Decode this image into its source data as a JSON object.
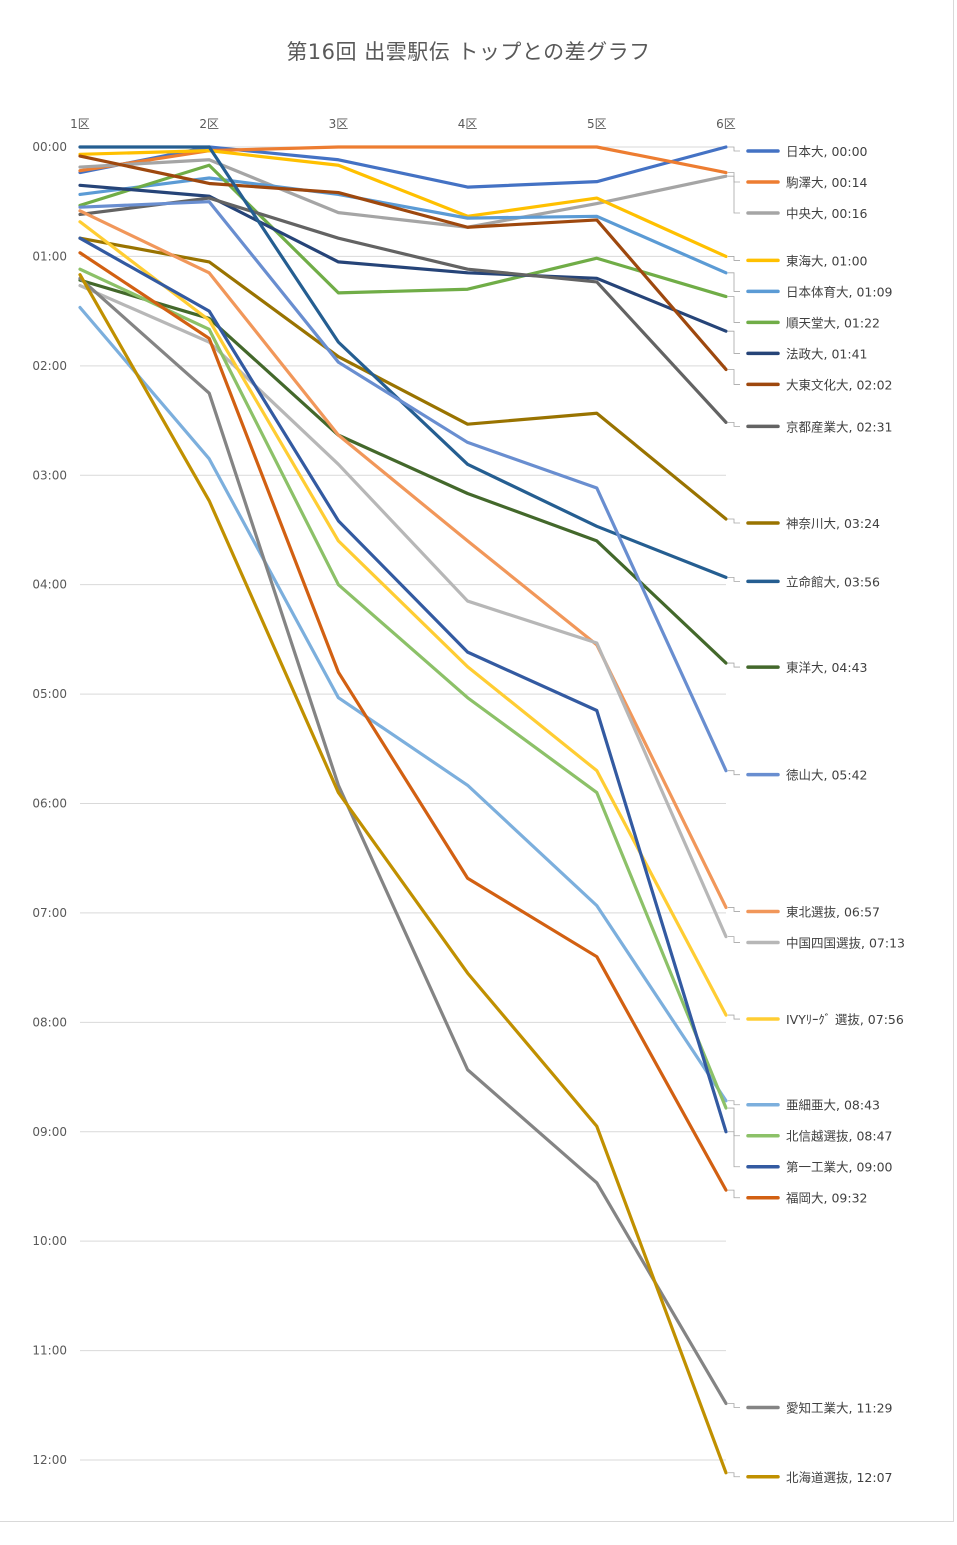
{
  "chart_data": {
    "type": "line",
    "title": "第16回 出雲駅伝 トップとの差グラフ",
    "xlabel": "",
    "ylabel": "",
    "categories": [
      "1区",
      "2区",
      "3区",
      "4区",
      "5区",
      "6区"
    ],
    "y_unit": "seconds behind leader (mm:ss)",
    "y_inverted": true,
    "ylim": [
      0,
      720
    ],
    "y_ticks": [
      "00:00",
      "01:00",
      "02:00",
      "03:00",
      "04:00",
      "05:00",
      "06:00",
      "07:00",
      "08:00",
      "09:00",
      "10:00",
      "11:00",
      "12:00"
    ],
    "grid": true,
    "legend": "right, labels at line ends",
    "series": [
      {
        "name": "日本大",
        "label": "日本大, 00:00",
        "color": "#4472C4",
        "values": [
          14,
          0,
          7,
          22,
          19,
          0
        ]
      },
      {
        "name": "駒澤大",
        "label": "駒澤大, 00:14",
        "color": "#ED7D31",
        "values": [
          13,
          2,
          0,
          0,
          0,
          14
        ]
      },
      {
        "name": "中央大",
        "label": "中央大, 00:16",
        "color": "#A5A5A5",
        "values": [
          11,
          7,
          36,
          44,
          31,
          16
        ]
      },
      {
        "name": "東海大",
        "label": "東海大, 01:00",
        "color": "#FFC000",
        "values": [
          4,
          2,
          10,
          38,
          28,
          60
        ]
      },
      {
        "name": "日本体育大",
        "label": "日本体育大, 01:09",
        "color": "#5B9BD5",
        "values": [
          26,
          17,
          26,
          39,
          38,
          69
        ]
      },
      {
        "name": "順天堂大",
        "label": "順天堂大, 01:22",
        "color": "#70AD47",
        "values": [
          32,
          10,
          80,
          78,
          61,
          82
        ]
      },
      {
        "name": "法政大",
        "label": "法政大, 01:41",
        "color": "#264478",
        "values": [
          21,
          27,
          63,
          69,
          72,
          101
        ]
      },
      {
        "name": "大東文化大",
        "label": "大東文化大, 02:02",
        "color": "#9E480E",
        "values": [
          5,
          20,
          25,
          44,
          40,
          122
        ]
      },
      {
        "name": "京都産業大",
        "label": "京都産業大, 02:31",
        "color": "#636363",
        "values": [
          37,
          28,
          50,
          67,
          74,
          151
        ]
      },
      {
        "name": "神奈川大",
        "label": "神奈川大, 03:24",
        "color": "#997300",
        "values": [
          50,
          63,
          115,
          152,
          146,
          204
        ]
      },
      {
        "name": "立命館大",
        "label": "立命館大, 03:56",
        "color": "#255E91",
        "values": [
          0,
          0,
          107,
          174,
          208,
          236
        ]
      },
      {
        "name": "東洋大",
        "label": "東洋大, 04:43",
        "color": "#43682B",
        "values": [
          73,
          94,
          158,
          190,
          216,
          283
        ]
      },
      {
        "name": "徳山大",
        "label": "徳山大, 05:42",
        "color": "#698ED0",
        "values": [
          33,
          30,
          118,
          162,
          187,
          342
        ]
      },
      {
        "name": "東北選抜",
        "label": "東北選抜, 06:57",
        "color": "#F1975A",
        "values": [
          35,
          69,
          158,
          216,
          273,
          417
        ]
      },
      {
        "name": "中国四国選抜",
        "label": "中国四国選抜, 07:13",
        "color": "#B7B7B7",
        "values": [
          76,
          107,
          174,
          249,
          272,
          433
        ]
      },
      {
        "name": "IVYﾘｰｸﾞ選抜",
        "label": "IVYﾘｰｸﾞ 選抜, 07:56",
        "color": "#FFCD33",
        "values": [
          41,
          95,
          216,
          285,
          342,
          476
        ]
      },
      {
        "name": "亜細亜大",
        "label": "亜細亜大, 08:43",
        "color": "#7CAFDD",
        "values": [
          88,
          171,
          302,
          350,
          416,
          523
        ]
      },
      {
        "name": "北信越選抜",
        "label": "北信越選抜, 08:47",
        "color": "#8CC168",
        "values": [
          67,
          100,
          240,
          302,
          354,
          527
        ]
      },
      {
        "name": "第一工業大",
        "label": "第一工業大, 09:00",
        "color": "#335AA1",
        "values": [
          50,
          90,
          205,
          277,
          309,
          540
        ]
      },
      {
        "name": "福岡大",
        "label": "福岡大, 09:32",
        "color": "#D26012",
        "values": [
          58,
          105,
          288,
          401,
          444,
          572
        ]
      },
      {
        "name": "愛知工業大",
        "label": "愛知工業大, 11:29",
        "color": "#848484",
        "values": [
          72,
          135,
          350,
          506,
          568,
          689
        ]
      },
      {
        "name": "北海道選抜",
        "label": "北海道選抜, 12:07",
        "color": "#C09000",
        "values": [
          70,
          194,
          354,
          453,
          537,
          727
        ]
      }
    ]
  }
}
